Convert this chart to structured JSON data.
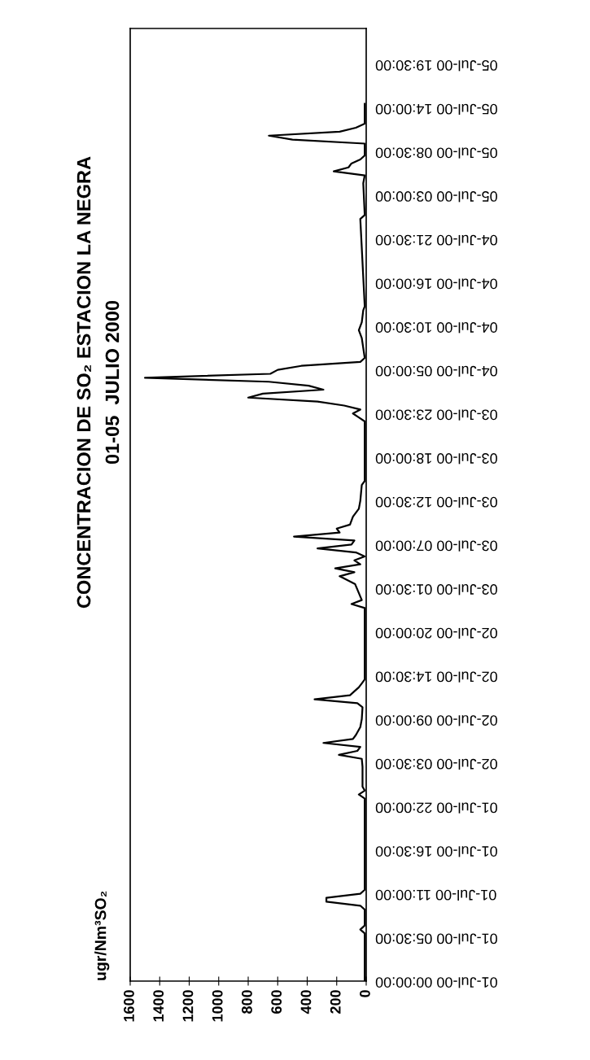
{
  "chart_data": {
    "type": "line",
    "orientation": "horizontal",
    "title": "CONCENTRACION DE SO₂ ESTACION LA NEGRA",
    "subtitle": "01-05  JULIO 2000",
    "annotations": [
      "ugr/Nm³SO₂"
    ],
    "xlim": [
      1600,
      0
    ],
    "xticks": [
      1600,
      1400,
      1200,
      1000,
      800,
      600,
      400,
      200,
      0
    ],
    "ylim": [
      "2000-07-01T00:00",
      "2000-07-06T00:00"
    ],
    "yticks": [
      {
        "value": "2000-07-01T00:00",
        "label": "01-Jul-00 00:00:00"
      },
      {
        "value": "2000-07-01T05:30",
        "label": "01-Jul-00 05:30:00"
      },
      {
        "value": "2000-07-01T11:00",
        "label": "01-Jul-00 11:00:00"
      },
      {
        "value": "2000-07-01T16:30",
        "label": "01-Jul-00 16:30:00"
      },
      {
        "value": "2000-07-01T22:00",
        "label": "01-Jul-00 22:00:00"
      },
      {
        "value": "2000-07-02T03:30",
        "label": "02-Jul-00 03:30:00"
      },
      {
        "value": "2000-07-02T09:00",
        "label": "02-Jul-00 09:00:00"
      },
      {
        "value": "2000-07-02T14:30",
        "label": "02-Jul-00 14:30:00"
      },
      {
        "value": "2000-07-02T20:00",
        "label": "02-Jul-00 20:00:00"
      },
      {
        "value": "2000-07-03T01:30",
        "label": "03-Jul-00 01:30:00"
      },
      {
        "value": "2000-07-03T07:00",
        "label": "03-Jul-00 07:00:00"
      },
      {
        "value": "2000-07-03T12:30",
        "label": "03-Jul-00 12:30:00"
      },
      {
        "value": "2000-07-03T18:00",
        "label": "03-Jul-00 18:00:00"
      },
      {
        "value": "2000-07-03T23:30",
        "label": "03-Jul-00 23:30:00"
      },
      {
        "value": "2000-07-04T05:00",
        "label": "04-Jul-00 05:00:00"
      },
      {
        "value": "2000-07-04T10:30",
        "label": "04-Jul-00 10:30:00"
      },
      {
        "value": "2000-07-04T16:00",
        "label": "04-Jul-00 16:00:00"
      },
      {
        "value": "2000-07-04T21:30",
        "label": "04-Jul-00 21:30:00"
      },
      {
        "value": "2000-07-05T03:00",
        "label": "05-Jul-00 03:00:00"
      },
      {
        "value": "2000-07-05T08:30",
        "label": "05-Jul-00 08:30:00"
      },
      {
        "value": "2000-07-05T14:00",
        "label": "05-Jul-00 14:00:00"
      },
      {
        "value": "2000-07-05T19:30",
        "label": "05-Jul-00 19:30:00"
      }
    ],
    "grid": false,
    "legend": false,
    "marker": "none",
    "line_style": "solid",
    "series": [
      {
        "color": "#000000",
        "x": [
          "2000-07-01T00:00",
          "2000-07-01T06:00",
          "2000-07-01T06:30",
          "2000-07-01T07:00",
          "2000-07-01T09:00",
          "2000-07-01T09:30",
          "2000-07-01T10:00",
          "2000-07-01T10:30",
          "2000-07-01T11:00",
          "2000-07-01T11:30",
          "2000-07-01T23:00",
          "2000-07-01T23:30",
          "2000-07-02T00:00",
          "2000-07-02T00:30",
          "2000-07-02T03:00",
          "2000-07-02T04:00",
          "2000-07-02T04:30",
          "2000-07-02T05:00",
          "2000-07-02T05:30",
          "2000-07-02T06:00",
          "2000-07-02T06:30",
          "2000-07-02T07:00",
          "2000-07-02T08:00",
          "2000-07-02T09:00",
          "2000-07-02T10:30",
          "2000-07-02T11:00",
          "2000-07-02T11:30",
          "2000-07-02T12:00",
          "2000-07-02T13:00",
          "2000-07-02T13:30",
          "2000-07-02T14:00",
          "2000-07-02T23:00",
          "2000-07-02T23:30",
          "2000-07-03T00:00",
          "2000-07-03T02:00",
          "2000-07-03T03:00",
          "2000-07-03T03:30",
          "2000-07-03T04:00",
          "2000-07-03T04:30",
          "2000-07-03T05:00",
          "2000-07-03T05:30",
          "2000-07-03T06:00",
          "2000-07-03T06:30",
          "2000-07-03T07:00",
          "2000-07-03T07:30",
          "2000-07-03T08:00",
          "2000-07-03T08:30",
          "2000-07-03T09:00",
          "2000-07-03T09:30",
          "2000-07-03T10:30",
          "2000-07-03T11:30",
          "2000-07-03T12:30",
          "2000-07-03T14:30",
          "2000-07-03T15:00",
          "2000-07-03T22:30",
          "2000-07-03T23:00",
          "2000-07-03T23:30",
          "2000-07-04T00:00",
          "2000-07-04T00:30",
          "2000-07-04T01:00",
          "2000-07-04T01:30",
          "2000-07-04T02:00",
          "2000-07-04T02:30",
          "2000-07-04T03:00",
          "2000-07-04T03:30",
          "2000-07-04T04:00",
          "2000-07-04T04:30",
          "2000-07-04T05:00",
          "2000-07-04T05:30",
          "2000-07-04T06:00",
          "2000-07-04T06:30",
          "2000-07-04T09:00",
          "2000-07-04T10:00",
          "2000-07-04T11:00",
          "2000-07-04T12:30",
          "2000-07-04T13:00",
          "2000-07-05T00:00",
          "2000-07-05T00:30",
          "2000-07-05T04:30",
          "2000-07-05T05:30",
          "2000-07-05T06:00",
          "2000-07-05T06:30",
          "2000-07-05T07:00",
          "2000-07-05T07:30",
          "2000-07-05T08:00",
          "2000-07-05T09:30",
          "2000-07-05T10:00",
          "2000-07-05T10:30",
          "2000-07-05T11:00",
          "2000-07-05T11:30",
          "2000-07-05T12:00",
          "2000-07-05T14:30"
        ],
        "values": [
          10,
          10,
          40,
          10,
          10,
          40,
          270,
          270,
          40,
          10,
          10,
          50,
          10,
          25,
          25,
          30,
          185,
          60,
          40,
          290,
          90,
          70,
          40,
          30,
          25,
          60,
          350,
          110,
          50,
          30,
          10,
          10,
          100,
          30,
          75,
          180,
          80,
          210,
          40,
          80,
          10,
          70,
          330,
          100,
          80,
          490,
          180,
          200,
          110,
          90,
          50,
          40,
          30,
          10,
          10,
          50,
          90,
          40,
          150,
          330,
          800,
          700,
          290,
          390,
          660,
          1500,
          650,
          600,
          440,
          40,
          10,
          30,
          50,
          30,
          20,
          10,
          40,
          10,
          20,
          10,
          220,
          120,
          100,
          40,
          10,
          10,
          500,
          660,
          180,
          70,
          10,
          10
        ]
      }
    ]
  }
}
